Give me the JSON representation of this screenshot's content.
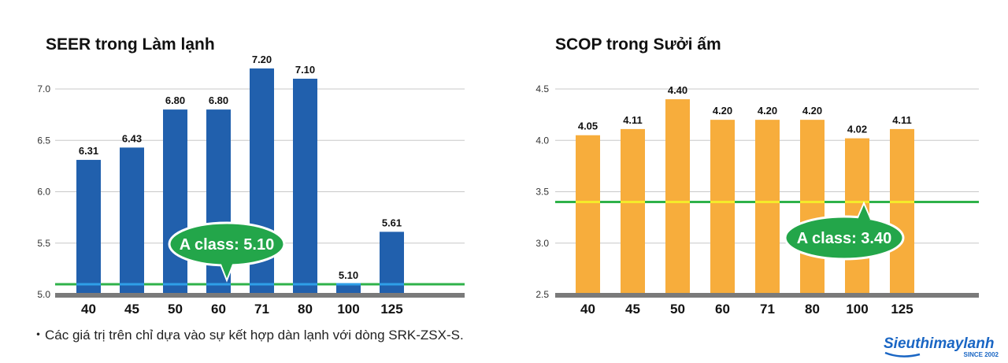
{
  "chart_data": [
    {
      "type": "bar",
      "title": "SEER trong Làm lạnh",
      "categories": [
        "40",
        "45",
        "50",
        "60",
        "71",
        "80",
        "100",
        "125"
      ],
      "values": [
        6.31,
        6.43,
        6.8,
        6.8,
        7.2,
        7.1,
        5.1,
        5.61
      ],
      "value_labels": [
        "6.31",
        "6.43",
        "6.80",
        "6.80",
        "7.20",
        "7.10",
        "5.10",
        "5.61"
      ],
      "ylim": [
        5.0,
        7.2
      ],
      "yticks": [
        5.0,
        5.5,
        6.0,
        6.5,
        7.0
      ],
      "ytick_labels": [
        "5.0",
        "5.5",
        "6.0",
        "6.5",
        "7.0"
      ],
      "grid": true,
      "bar_color": "#2160ad",
      "reference": {
        "value": 5.1,
        "label": "A class: 5.10",
        "line_color": "#2fb24a",
        "callout_color": "#23a64a",
        "overlap_color": "#2f9fe8"
      }
    },
    {
      "type": "bar",
      "title": "SCOP trong Sưởi ấm",
      "categories": [
        "40",
        "45",
        "50",
        "60",
        "71",
        "80",
        "100",
        "125"
      ],
      "values": [
        4.05,
        4.11,
        4.4,
        4.2,
        4.2,
        4.2,
        4.02,
        4.11
      ],
      "value_labels": [
        "4.05",
        "4.11",
        "4.40",
        "4.20",
        "4.20",
        "4.20",
        "4.02",
        "4.11"
      ],
      "ylim": [
        2.5,
        4.5
      ],
      "yticks": [
        2.5,
        3.0,
        3.5,
        4.0,
        4.5
      ],
      "ytick_labels": [
        "2.5",
        "3.0",
        "3.5",
        "4.0",
        "4.5"
      ],
      "grid": true,
      "bar_color": "#f7ad3c",
      "reference": {
        "value": 3.4,
        "label": "A class: 3.40",
        "line_color": "#2fb24a",
        "callout_color": "#23a64a",
        "overlap_color": "#f5ea2a"
      }
    }
  ],
  "footnote": "・Các giá trị trên chỉ dựa vào sự kết hợp dàn lạnh với dòng SRK-ZSX-S.",
  "logo": {
    "name": "Sieuthimaylanh",
    "tagline": "SINCE 2002",
    "color": "#1a66c4"
  }
}
